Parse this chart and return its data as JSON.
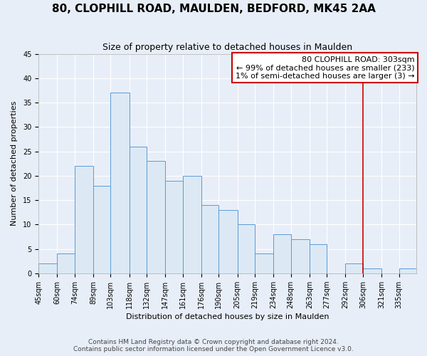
{
  "title": "80, CLOPHILL ROAD, MAULDEN, BEDFORD, MK45 2AA",
  "subtitle": "Size of property relative to detached houses in Maulden",
  "xlabel": "Distribution of detached houses by size in Maulden",
  "ylabel": "Number of detached properties",
  "footer1": "Contains HM Land Registry data © Crown copyright and database right 2024.",
  "footer2": "Contains public sector information licensed under the Open Government Licence v3.0.",
  "bin_labels": [
    "45sqm",
    "60sqm",
    "74sqm",
    "89sqm",
    "103sqm",
    "118sqm",
    "132sqm",
    "147sqm",
    "161sqm",
    "176sqm",
    "190sqm",
    "205sqm",
    "219sqm",
    "234sqm",
    "248sqm",
    "263sqm",
    "277sqm",
    "292sqm",
    "306sqm",
    "321sqm",
    "335sqm"
  ],
  "bin_edges": [
    45,
    60,
    74,
    89,
    103,
    118,
    132,
    147,
    161,
    176,
    190,
    205,
    219,
    234,
    248,
    263,
    277,
    292,
    306,
    321,
    335,
    349
  ],
  "counts": [
    2,
    4,
    22,
    18,
    37,
    26,
    23,
    19,
    20,
    14,
    13,
    10,
    4,
    8,
    7,
    6,
    0,
    2,
    1,
    0,
    1
  ],
  "bar_color": "#dce9f5",
  "bar_edge_color": "#5b9bd5",
  "property_line_x": 306,
  "property_label": "80 CLOPHILL ROAD: 303sqm",
  "annotation_line1": "← 99% of detached houses are smaller (233)",
  "annotation_line2": "1% of semi-detached houses are larger (3) →",
  "line_color": "#cc0000",
  "box_edge_color": "#cc0000",
  "ylim": [
    0,
    45
  ],
  "background_color": "#e8eef8",
  "grid_color": "#ffffff",
  "spine_color": "#aaaaaa",
  "title_fontsize": 11,
  "subtitle_fontsize": 9,
  "axis_label_fontsize": 8,
  "tick_fontsize": 7,
  "annotation_fontsize": 8,
  "footer_fontsize": 6.5
}
